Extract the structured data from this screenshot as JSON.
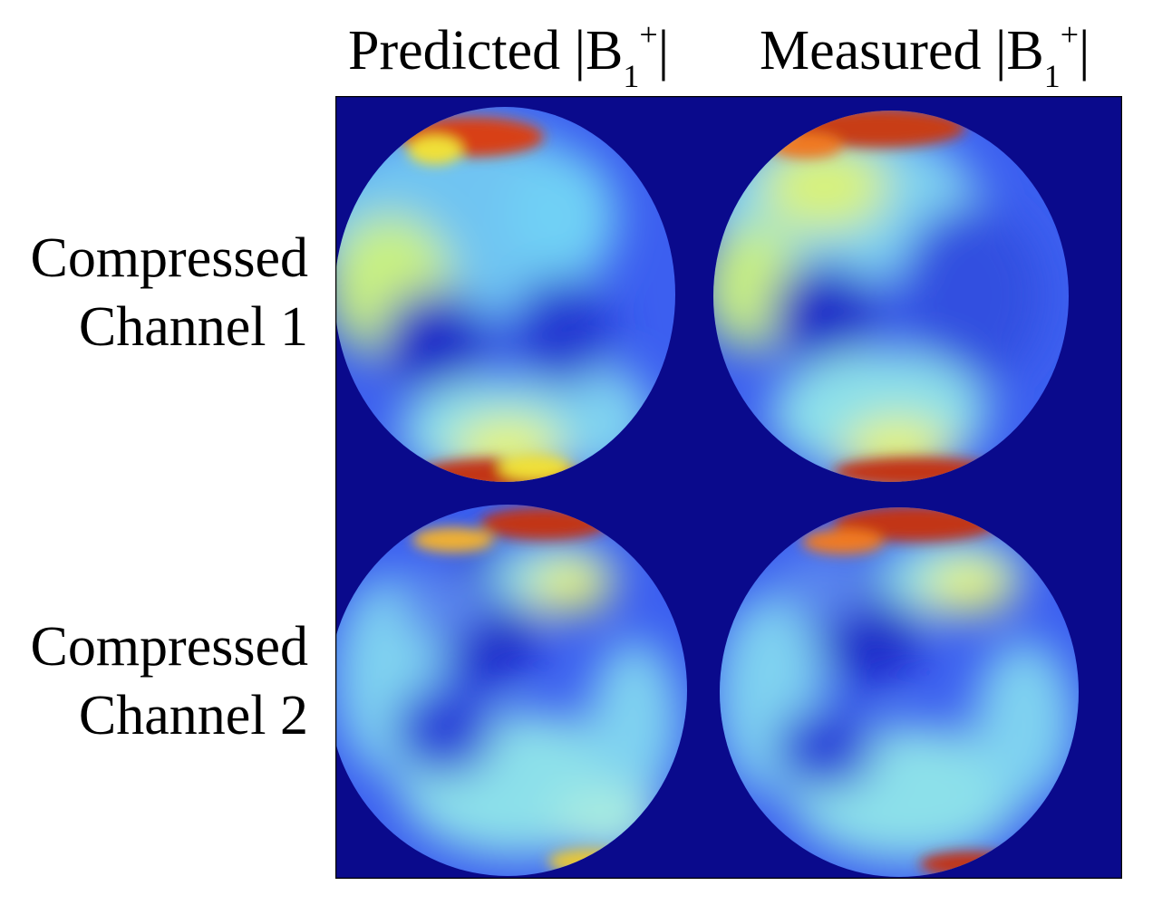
{
  "column_headers": [
    {
      "prefix": "Predicted |B",
      "sub": "1",
      "sup": "+",
      "suffix": "|"
    },
    {
      "prefix": "Measured |B",
      "sub": "1",
      "sup": "+",
      "suffix": "|"
    }
  ],
  "row_labels": [
    {
      "line1": "Compressed",
      "line2": "Channel 1"
    },
    {
      "line1": "Compressed",
      "line2": "Channel 2"
    }
  ],
  "colormap": {
    "name": "jet",
    "background": "#0a0a8c",
    "stops": [
      "#00008f",
      "#0000ff",
      "#00ffff",
      "#ffff00",
      "#ff0000",
      "#800000"
    ]
  }
}
